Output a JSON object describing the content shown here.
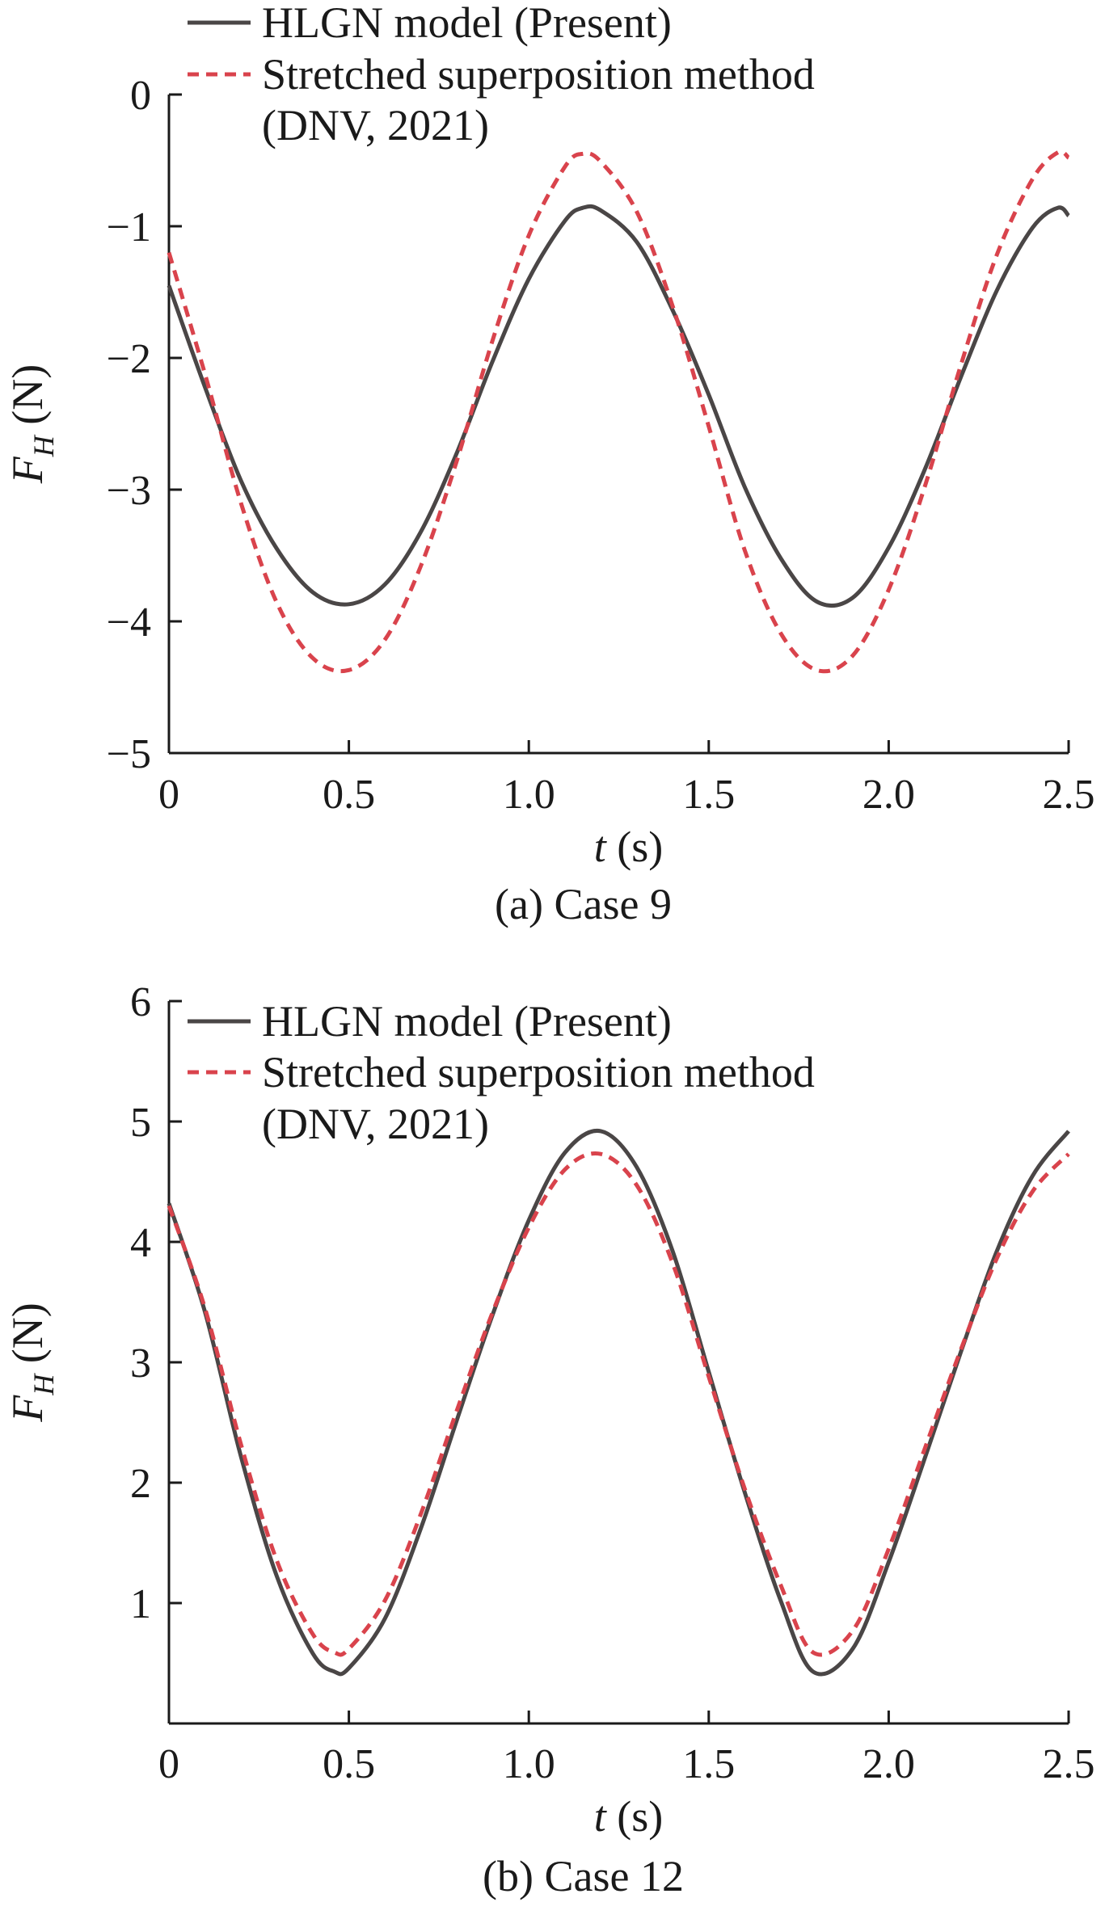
{
  "chart_data": [
    {
      "type": "line",
      "caption": "(a) Case 9",
      "xlabel_var": "t",
      "xlabel_unit": " (s)",
      "ylabel_var": "F",
      "ylabel_sub": "H",
      "ylabel_unit": " (N)",
      "xlim": [
        0,
        2.5
      ],
      "ylim": [
        -5,
        0
      ],
      "xticks": [
        0,
        0.5,
        1.0,
        1.5,
        2.0,
        2.5
      ],
      "xtick_labels": [
        "0",
        "0.5",
        "1.0",
        "1.5",
        "2.0",
        "2.5"
      ],
      "yticks": [
        -5,
        -4,
        -3,
        -2,
        -1,
        0
      ],
      "ytick_labels": [
        "−5",
        "−4",
        "−3",
        "−2",
        "−1",
        "0"
      ],
      "grid": false,
      "legend_position": "top-left",
      "series": [
        {
          "name": "HLGN model (Present)",
          "color": "#4a4646",
          "dash": "solid",
          "x": [
            0,
            0.1,
            0.2,
            0.3,
            0.4,
            0.5,
            0.6,
            0.7,
            0.8,
            0.9,
            1.0,
            1.1,
            1.15,
            1.2,
            1.3,
            1.4,
            1.5,
            1.6,
            1.7,
            1.8,
            1.9,
            2.0,
            2.1,
            2.2,
            2.3,
            2.4,
            2.47,
            2.5
          ],
          "y": [
            -1.45,
            -2.22,
            -2.93,
            -3.45,
            -3.78,
            -3.87,
            -3.72,
            -3.32,
            -2.72,
            -2.02,
            -1.4,
            -0.96,
            -0.86,
            -0.88,
            -1.12,
            -1.64,
            -2.28,
            -2.98,
            -3.52,
            -3.85,
            -3.82,
            -3.44,
            -2.85,
            -2.15,
            -1.49,
            -1.01,
            -0.86,
            -0.92
          ]
        },
        {
          "name": "Stretched superposition method (DNV, 2021)",
          "name_line1": "Stretched superposition method",
          "name_line2": "(DNV, 2021)",
          "color": "#d9434c",
          "dash": "dashed",
          "x": [
            0,
            0.1,
            0.2,
            0.3,
            0.4,
            0.5,
            0.6,
            0.7,
            0.8,
            0.9,
            1.0,
            1.1,
            1.15,
            1.2,
            1.3,
            1.4,
            1.5,
            1.6,
            1.7,
            1.8,
            1.9,
            2.0,
            2.1,
            2.2,
            2.3,
            2.4,
            2.47,
            2.5
          ],
          "y": [
            -1.2,
            -2.12,
            -3.1,
            -3.86,
            -4.28,
            -4.37,
            -4.14,
            -3.58,
            -2.78,
            -1.86,
            -1.07,
            -0.55,
            -0.45,
            -0.51,
            -0.89,
            -1.61,
            -2.52,
            -3.46,
            -4.09,
            -4.37,
            -4.26,
            -3.76,
            -2.98,
            -2.06,
            -1.22,
            -0.64,
            -0.44,
            -0.48
          ]
        }
      ]
    },
    {
      "type": "line",
      "caption": "(b) Case 12",
      "xlabel_var": "t",
      "xlabel_unit": " (s)",
      "ylabel_var": "F",
      "ylabel_sub": "H",
      "ylabel_unit": " (N)",
      "xlim": [
        0,
        2.5
      ],
      "ylim": [
        0,
        6
      ],
      "xticks": [
        0,
        0.5,
        1.0,
        1.5,
        2.0,
        2.5
      ],
      "xtick_labels": [
        "0",
        "0.5",
        "1.0",
        "1.5",
        "2.0",
        "2.5"
      ],
      "yticks": [
        1,
        2,
        3,
        4,
        5,
        6
      ],
      "ytick_labels": [
        "1",
        "2",
        "3",
        "4",
        "5",
        "6"
      ],
      "grid": false,
      "legend_position": "top-left",
      "series": [
        {
          "name": "HLGN model (Present)",
          "color": "#4a4646",
          "dash": "solid",
          "x": [
            0,
            0.1,
            0.2,
            0.3,
            0.4,
            0.46,
            0.5,
            0.6,
            0.7,
            0.8,
            0.9,
            1.0,
            1.1,
            1.2,
            1.3,
            1.4,
            1.5,
            1.6,
            1.7,
            1.79,
            1.9,
            2.0,
            2.1,
            2.2,
            2.3,
            2.4,
            2.5
          ],
          "y": [
            4.32,
            3.42,
            2.22,
            1.22,
            0.58,
            0.43,
            0.46,
            0.87,
            1.62,
            2.52,
            3.4,
            4.18,
            4.74,
            4.92,
            4.62,
            3.92,
            2.92,
            1.92,
            1.02,
            0.43,
            0.62,
            1.34,
            2.2,
            3.08,
            3.92,
            4.55,
            4.92
          ]
        },
        {
          "name": "Stretched superposition method (DNV, 2021)",
          "name_line1": "Stretched superposition method",
          "name_line2": "(DNV, 2021)",
          "color": "#d9434c",
          "dash": "dashed",
          "x": [
            0,
            0.1,
            0.2,
            0.3,
            0.4,
            0.46,
            0.5,
            0.6,
            0.7,
            0.8,
            0.9,
            1.0,
            1.1,
            1.2,
            1.3,
            1.4,
            1.5,
            1.6,
            1.7,
            1.79,
            1.9,
            2.0,
            2.1,
            2.2,
            2.3,
            2.4,
            2.5
          ],
          "y": [
            4.3,
            3.45,
            2.32,
            1.35,
            0.74,
            0.59,
            0.62,
            1.02,
            1.74,
            2.6,
            3.42,
            4.12,
            4.6,
            4.73,
            4.47,
            3.82,
            2.88,
            1.95,
            1.15,
            0.59,
            0.77,
            1.45,
            2.28,
            3.1,
            3.86,
            4.42,
            4.73
          ]
        }
      ]
    }
  ]
}
